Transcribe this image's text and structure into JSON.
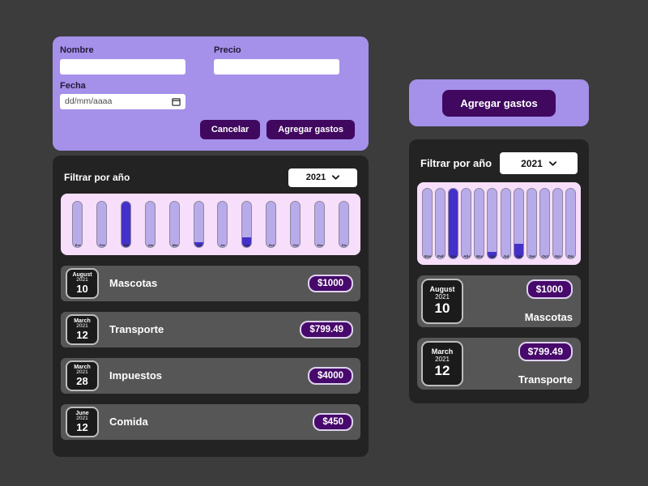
{
  "colors": {
    "page_bg": "#3c3c3c",
    "accent_purple": "#a590ea",
    "button_purple": "#40085f",
    "badge_purple": "#47096b",
    "card_dark": "#232323",
    "row_gray": "#565656",
    "chart_bg": "#f7defa",
    "bar_track": "#b7abe9",
    "bar_fill": "#4431c9"
  },
  "form": {
    "name_label": "Nombre",
    "price_label": "Precio",
    "date_label": "Fecha",
    "date_placeholder": "dd/mm/aaaa",
    "cancel_label": "Cancelar",
    "submit_label": "Agregar gastos"
  },
  "mobile": {
    "add_button_label": "Agregar gastos"
  },
  "filter": {
    "label": "Filtrar por año",
    "selected_year": "2021"
  },
  "chart_data": {
    "type": "bar",
    "categories": [
      "Ene",
      "Feb",
      "Mar",
      "Abr",
      "May",
      "Jun",
      "Jul",
      "Ago",
      "Sep",
      "Oct",
      "Nov",
      "Dic"
    ],
    "values": [
      0,
      0,
      4799.49,
      0,
      0,
      450,
      0,
      1000,
      0,
      0,
      0,
      0
    ],
    "ylim": [
      0,
      4799.49
    ],
    "legend": "none",
    "grid": false
  },
  "expenses": [
    {
      "month": "August",
      "year": "2021",
      "day": "10",
      "name": "Mascotas",
      "amount": "$1000"
    },
    {
      "month": "March",
      "year": "2021",
      "day": "12",
      "name": "Transporte",
      "amount": "$799.49"
    },
    {
      "month": "March",
      "year": "2021",
      "day": "28",
      "name": "Impuestos",
      "amount": "$4000"
    },
    {
      "month": "June",
      "year": "2021",
      "day": "12",
      "name": "Comida",
      "amount": "$450"
    }
  ],
  "mobile_expenses": [
    {
      "month": "August",
      "year": "2021",
      "day": "10",
      "name": "Mascotas",
      "amount": "$1000"
    },
    {
      "month": "March",
      "year": "2021",
      "day": "12",
      "name": "Transporte",
      "amount": "$799.49"
    }
  ]
}
